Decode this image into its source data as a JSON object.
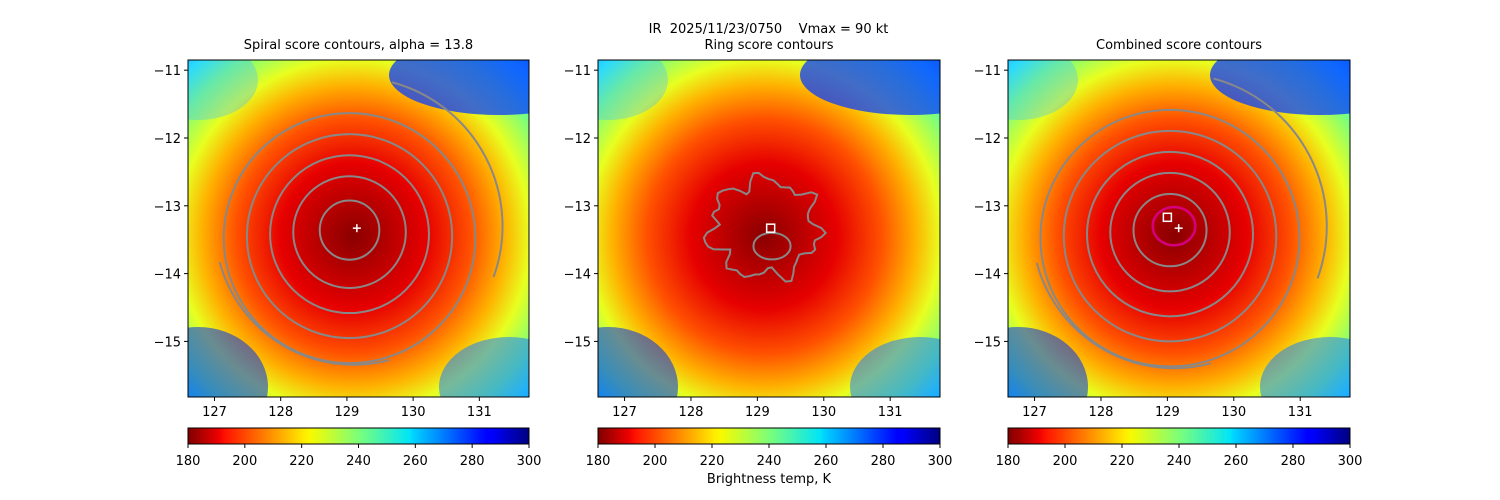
{
  "figure": {
    "suptitle": "IR  2025/11/23/0750    Vmax = 90 kt",
    "colorbar_label": "Brightness temp, K"
  },
  "colors": {
    "contour": "#888888",
    "ring": "#d6007f",
    "marker": "#ffffff"
  },
  "chart_data": [
    {
      "type": "heatmap",
      "title": "Spiral score contours, alpha = 13.8",
      "xlim": [
        126.6,
        131.75
      ],
      "ylim": [
        -15.82,
        -10.85
      ],
      "x_ticks": [
        "127",
        "128",
        "129",
        "130",
        "131"
      ],
      "y_ticks": [
        "−11",
        "−12",
        "−13",
        "−14",
        "−15"
      ],
      "colorbar": {
        "min": 180,
        "max": 300,
        "ticks": [
          "180",
          "200",
          "220",
          "240",
          "260",
          "280",
          "300"
        ],
        "colormap": "jet_r"
      },
      "center": [
        129.1,
        -13.3
      ],
      "spiral_contour_radii_deg": [
        0.45,
        0.85,
        1.2,
        1.55,
        1.9
      ],
      "markers": [
        {
          "kind": "plus",
          "lon": 129.15,
          "lat": -13.33
        }
      ]
    },
    {
      "type": "heatmap",
      "title": "Ring score contours",
      "xlim": [
        126.6,
        131.75
      ],
      "ylim": [
        -15.82,
        -10.85
      ],
      "x_ticks": [
        "127",
        "128",
        "129",
        "130",
        "131"
      ],
      "y_ticks": [
        "−11",
        "−12",
        "−13",
        "−14",
        "−15"
      ],
      "colorbar": {
        "min": 180,
        "max": 300,
        "ticks": [
          "180",
          "200",
          "220",
          "240",
          "260",
          "280",
          "300"
        ],
        "colormap": "jet_r"
      },
      "center": [
        129.1,
        -13.3
      ],
      "ring_contour_radius_deg": 0.8,
      "markers": [
        {
          "kind": "square",
          "lon": 129.2,
          "lat": -13.33
        }
      ]
    },
    {
      "type": "heatmap",
      "title": "Combined score contours",
      "xlim": [
        126.6,
        131.75
      ],
      "ylim": [
        -15.82,
        -10.85
      ],
      "x_ticks": [
        "127",
        "128",
        "129",
        "130",
        "131"
      ],
      "y_ticks": [
        "−11",
        "−12",
        "−13",
        "−14",
        "−15"
      ],
      "colorbar": {
        "min": 180,
        "max": 300,
        "ticks": [
          "180",
          "200",
          "220",
          "240",
          "260",
          "280",
          "300"
        ],
        "colormap": "jet_r"
      },
      "center": [
        129.1,
        -13.3
      ],
      "spiral_contour_radii_deg": [
        0.55,
        0.9,
        1.25,
        1.6,
        1.95
      ],
      "highlight_ring_radius_deg": 0.32,
      "markers": [
        {
          "kind": "square",
          "lon": 129.0,
          "lat": -13.17
        },
        {
          "kind": "plus",
          "lon": 129.17,
          "lat": -13.33
        }
      ]
    }
  ]
}
